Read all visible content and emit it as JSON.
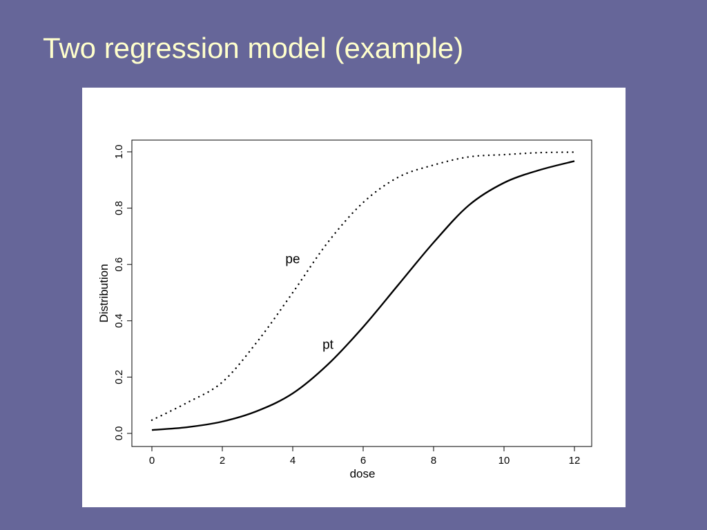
{
  "slide": {
    "title": "Two regression model (example)",
    "background_color": "#666699",
    "title_color": "#FFFFCC"
  },
  "chart_data": {
    "type": "line",
    "title": "",
    "xlabel": "dose",
    "ylabel": "Distribution",
    "xlim": [
      0,
      12
    ],
    "ylim": [
      0,
      1
    ],
    "xticks": [
      0,
      2,
      4,
      6,
      8,
      10,
      12
    ],
    "yticks": [
      "0.0",
      "0.2",
      "0.4",
      "0.6",
      "0.8",
      "1.0"
    ],
    "grid": false,
    "legend": "none",
    "series": [
      {
        "name": "pe",
        "style": "dotted",
        "x": [
          0,
          1,
          2,
          3,
          4,
          5,
          6,
          7,
          8,
          9,
          10,
          11,
          12
        ],
        "y": [
          0.047,
          0.109,
          0.182,
          0.327,
          0.5,
          0.679,
          0.82,
          0.91,
          0.953,
          0.982,
          0.99,
          0.997,
          0.999
        ]
      },
      {
        "name": "pt",
        "style": "solid",
        "x": [
          0,
          1,
          2,
          3,
          4,
          5,
          6,
          7,
          8,
          9,
          10,
          11,
          12
        ],
        "y": [
          0.012,
          0.022,
          0.042,
          0.08,
          0.142,
          0.245,
          0.378,
          0.528,
          0.678,
          0.81,
          0.89,
          0.935,
          0.967
        ]
      }
    ],
    "annotations": [
      {
        "text": "pe",
        "x": 4.0,
        "y": 0.604
      },
      {
        "text": "pt",
        "x": 5.0,
        "y": 0.3
      }
    ]
  }
}
